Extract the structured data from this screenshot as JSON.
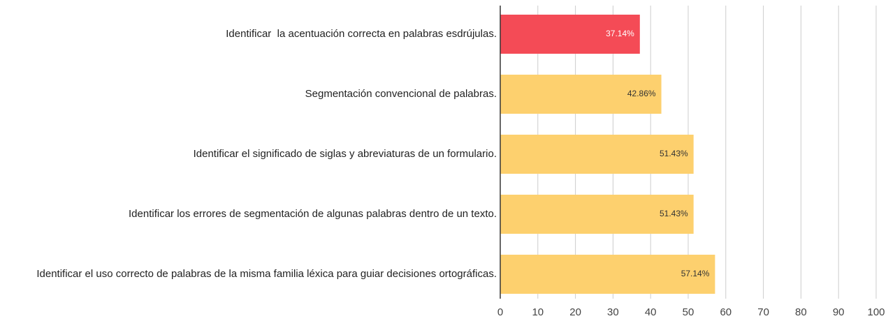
{
  "chart_data": {
    "type": "hbar",
    "categories": [
      "Identificar  la acentuación correcta en palabras esdrújulas.",
      "Segmentación convencional de palabras.",
      "Identificar el significado de siglas y abreviaturas de un formulario.",
      "Identificar los errores de segmentación de algunas palabras dentro de un texto.",
      "Identificar el uso correcto de palabras de la misma familia léxica para guiar decisiones ortográficas."
    ],
    "values": [
      37.14,
      42.86,
      51.43,
      51.43,
      57.14
    ],
    "value_labels": [
      "37.14%",
      "42.86%",
      "51.43%",
      "51.43%",
      "57.14%"
    ],
    "colors": [
      "#f44b56",
      "#fdd06e",
      "#fdd06e",
      "#fdd06e",
      "#fdd06e"
    ],
    "xlim": [
      0,
      100
    ],
    "xticks": [
      0,
      10,
      20,
      30,
      40,
      50,
      60,
      70,
      80,
      90,
      100
    ],
    "grid": true
  }
}
